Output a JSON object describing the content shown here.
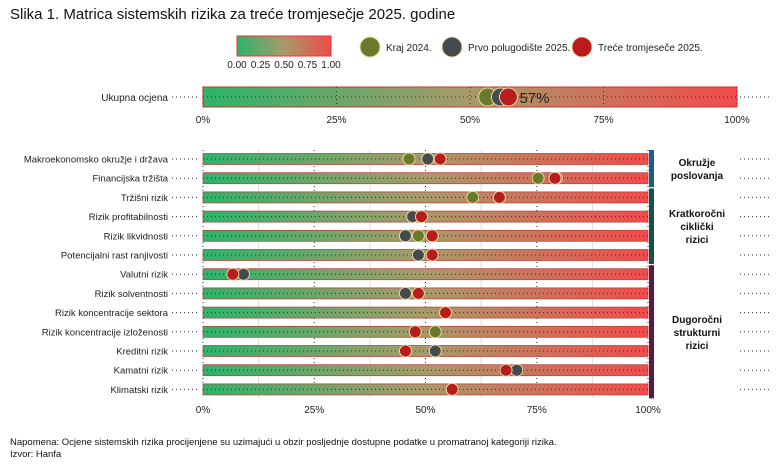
{
  "chart_data": {
    "type": "scatter",
    "title": "Slika 1. Matrica sistemskih rizika za treće tromjesečje 2025. godine",
    "colorbar": {
      "ticks": [
        "0.00",
        "0.25",
        "0.50",
        "0.75",
        "1.00"
      ],
      "from": "#2db36b",
      "mid": "#a89a6a",
      "to": "#f04b4b"
    },
    "series": [
      {
        "name": "Kraj 2024.",
        "color": "#6b7a2a"
      },
      {
        "name": "Prvo polugodište 2025.",
        "color": "#454a50"
      },
      {
        "name": "Treće tromjeseče 2025.",
        "color": "#b81c1c"
      }
    ],
    "overall": {
      "label": "Ukupna ocjena",
      "values": [
        53.3,
        55.7,
        57.2
      ],
      "annotation": "57%",
      "xticks": [
        "0%",
        "25%",
        "50%",
        "75%",
        "100%"
      ]
    },
    "xlim": [
      0,
      100
    ],
    "xticks": [
      "0%",
      "25%",
      "50%",
      "75%",
      "100%"
    ],
    "rows": [
      {
        "label": "Makroekonomsko okružje i država",
        "values": [
          46.3,
          50.5,
          53.3
        ]
      },
      {
        "label": "Financijska tržišta",
        "values": [
          75.3,
          79.4,
          79.1
        ]
      },
      {
        "label": "Tržišni rizik",
        "values": [
          60.6,
          null,
          66.6
        ]
      },
      {
        "label": "Rizik profitabilnosti",
        "values": [
          null,
          47.1,
          49.1
        ]
      },
      {
        "label": "Rizik likvidnosti",
        "values": [
          48.4,
          45.5,
          51.5
        ]
      },
      {
        "label": "Potencijalni rast ranjivosti",
        "values": [
          null,
          48.4,
          51.5
        ]
      },
      {
        "label": "Valutni rizik",
        "values": [
          null,
          9.1,
          6.7
        ]
      },
      {
        "label": "Rizik solventnosti",
        "values": [
          null,
          45.5,
          48.4
        ]
      },
      {
        "label": "Rizik koncentracije sektora",
        "values": [
          null,
          null,
          54.5
        ]
      },
      {
        "label": "Rizik koncentracije izloženosti",
        "values": [
          52.2,
          null,
          47.7
        ]
      },
      {
        "label": "Kreditni rizik",
        "values": [
          null,
          52.2,
          45.5
        ]
      },
      {
        "label": "Kamatni rizik",
        "values": [
          null,
          70.5,
          68.1
        ]
      },
      {
        "label": "Klimatski rizik",
        "values": [
          null,
          null,
          56.0
        ]
      }
    ],
    "groups": [
      {
        "label": [
          "Okružje",
          "poslovanja"
        ],
        "rows": [
          0,
          1
        ],
        "color": "#1f5c86"
      },
      {
        "label": [
          "Kratkoročni",
          "ciklički",
          "rizici"
        ],
        "rows": [
          2,
          5
        ],
        "color": "#174f4a"
      },
      {
        "label": [
          "Dugoročni",
          "strukturni",
          "rizici"
        ],
        "rows": [
          6,
          12
        ],
        "color": "#5a1a42"
      }
    ]
  },
  "notes": {
    "napomena": "Napomena: Ocjene sistemskih rizika procijenjene su uzimajući u obzir posljednje dostupne podatke u promatranoj kategoriji rizika.",
    "izvor": "Izvor: Hanfa"
  }
}
